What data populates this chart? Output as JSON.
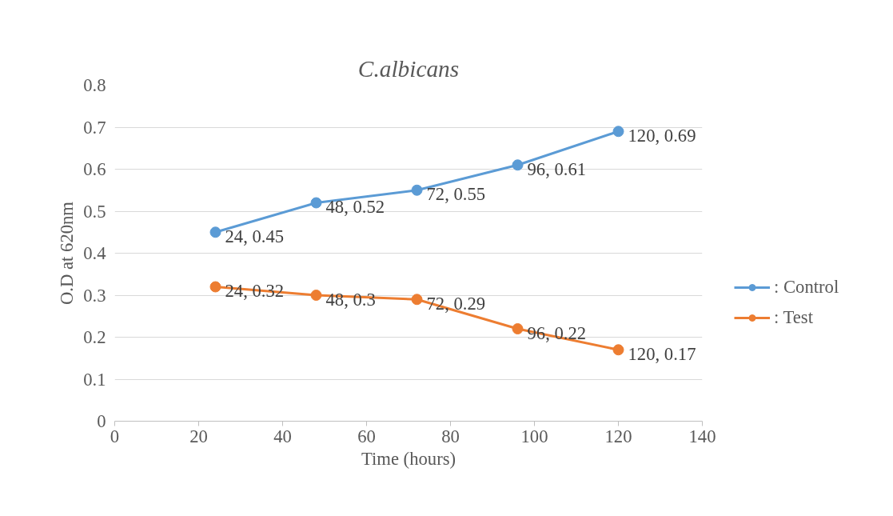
{
  "chart_data": {
    "type": "line",
    "title": "C.albicans",
    "xlabel": "Time (hours)",
    "ylabel": "O.D at 620nm",
    "x": [
      24,
      48,
      72,
      96,
      120
    ],
    "series": [
      {
        "name": ": Control",
        "color": "#5b9bd5",
        "values": [
          0.45,
          0.52,
          0.55,
          0.61,
          0.69
        ],
        "value_labels": [
          "24, 0.45",
          "48, 0.52",
          "72, 0.55",
          "96, 0.61",
          "120, 0.69"
        ]
      },
      {
        "name": ": Test",
        "color": "#ed7d31",
        "values": [
          0.32,
          0.3,
          0.29,
          0.22,
          0.17
        ],
        "value_labels": [
          "24, 0.32",
          "48, 0.3",
          "72, 0.29",
          "96, 0.22",
          "120, 0.17"
        ]
      }
    ],
    "xlim": [
      0,
      140
    ],
    "xticks": [
      0,
      20,
      40,
      60,
      80,
      100,
      120,
      140
    ],
    "ylim": [
      0,
      0.8
    ],
    "yticks": [
      0,
      0.1,
      0.2,
      0.3,
      0.4,
      0.5,
      0.6,
      0.7,
      0.8
    ],
    "grid": "y",
    "legend": "right",
    "marker": "circle",
    "line_style": "solid"
  }
}
